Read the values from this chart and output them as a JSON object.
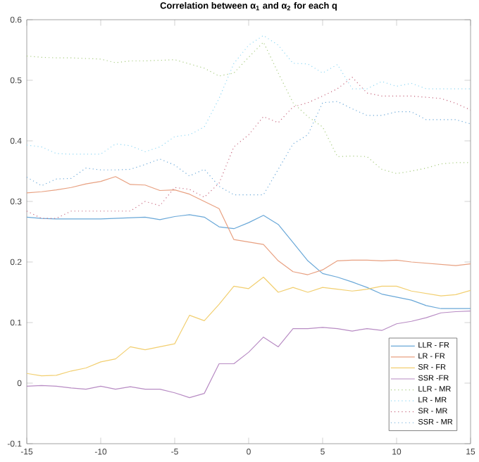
{
  "chart_data": {
    "type": "line",
    "title": "Correlation between α$_{1}$ and α$_{2}$ for each q",
    "x": [
      -15,
      -14,
      -13,
      -12,
      -11,
      -10,
      -9,
      -8,
      -7,
      -6,
      -5,
      -4,
      -3,
      -2,
      -1,
      0,
      1,
      2,
      3,
      4,
      5,
      6,
      7,
      8,
      9,
      10,
      11,
      12,
      13,
      14,
      15
    ],
    "xlim": [
      -15,
      15
    ],
    "xticks": [
      -15,
      -10,
      -5,
      0,
      5,
      10,
      15
    ],
    "ylim": [
      -0.1,
      0.6
    ],
    "yticks": [
      -0.1,
      0,
      0.1,
      0.2,
      0.3,
      0.4,
      0.5,
      0.6
    ],
    "grid": false,
    "legend": "bottom right",
    "series": [
      {
        "name": "LLR - FR",
        "color": "#6aa8d8",
        "line_style": "solid",
        "values": [
          0.274,
          0.272,
          0.271,
          0.271,
          0.271,
          0.271,
          0.272,
          0.273,
          0.274,
          0.27,
          0.275,
          0.278,
          0.274,
          0.258,
          0.255,
          0.265,
          0.277,
          0.262,
          0.232,
          0.202,
          0.181,
          0.175,
          0.167,
          0.158,
          0.147,
          0.142,
          0.137,
          0.128,
          0.123,
          0.123,
          0.123
        ]
      },
      {
        "name": "LR - FR",
        "color": "#e8a080",
        "line_style": "solid",
        "values": [
          0.314,
          0.316,
          0.319,
          0.323,
          0.329,
          0.333,
          0.341,
          0.328,
          0.327,
          0.318,
          0.319,
          0.312,
          0.3,
          0.288,
          0.237,
          0.233,
          0.229,
          0.202,
          0.184,
          0.179,
          0.187,
          0.202,
          0.203,
          0.203,
          0.202,
          0.203,
          0.2,
          0.198,
          0.196,
          0.194,
          0.197
        ]
      },
      {
        "name": "SR - FR",
        "color": "#f2cf70",
        "line_style": "solid",
        "values": [
          0.016,
          0.012,
          0.013,
          0.02,
          0.025,
          0.035,
          0.04,
          0.06,
          0.055,
          0.06,
          0.065,
          0.112,
          0.103,
          0.13,
          0.16,
          0.156,
          0.175,
          0.15,
          0.158,
          0.15,
          0.158,
          0.155,
          0.152,
          0.155,
          0.16,
          0.16,
          0.152,
          0.148,
          0.144,
          0.146,
          0.153
        ]
      },
      {
        "name": "SSR -FR",
        "color": "#b88cc4",
        "line_style": "solid",
        "values": [
          -0.005,
          -0.004,
          -0.005,
          -0.008,
          -0.01,
          -0.005,
          -0.01,
          -0.006,
          -0.01,
          -0.01,
          -0.016,
          -0.024,
          -0.017,
          0.032,
          0.032,
          0.051,
          0.076,
          0.06,
          0.09,
          0.09,
          0.092,
          0.09,
          0.086,
          0.09,
          0.087,
          0.098,
          0.102,
          0.108,
          0.116,
          0.118,
          0.119
        ]
      },
      {
        "name": "LLR - MR",
        "color": "#a8cc80",
        "line_style": "dotted",
        "values": [
          0.54,
          0.538,
          0.537,
          0.537,
          0.536,
          0.535,
          0.529,
          0.532,
          0.532,
          0.533,
          0.534,
          0.527,
          0.52,
          0.507,
          0.512,
          0.538,
          0.563,
          0.512,
          0.463,
          0.44,
          0.423,
          0.374,
          0.375,
          0.374,
          0.353,
          0.346,
          0.35,
          0.355,
          0.362,
          0.364,
          0.364
        ]
      },
      {
        "name": "LR - MR",
        "color": "#90d8f4",
        "line_style": "dotted",
        "values": [
          0.393,
          0.39,
          0.379,
          0.378,
          0.378,
          0.378,
          0.395,
          0.392,
          0.382,
          0.39,
          0.407,
          0.41,
          0.423,
          0.47,
          0.528,
          0.558,
          0.574,
          0.558,
          0.528,
          0.527,
          0.512,
          0.526,
          0.486,
          0.486,
          0.498,
          0.49,
          0.495,
          0.486,
          0.486,
          0.486,
          0.486
        ]
      },
      {
        "name": "SR - MR",
        "color": "#c86a80",
        "line_style": "dotted",
        "values": [
          0.284,
          0.272,
          0.272,
          0.284,
          0.284,
          0.284,
          0.284,
          0.284,
          0.3,
          0.293,
          0.323,
          0.32,
          0.307,
          0.33,
          0.39,
          0.41,
          0.44,
          0.43,
          0.456,
          0.463,
          0.474,
          0.486,
          0.505,
          0.479,
          0.474,
          0.474,
          0.474,
          0.472,
          0.47,
          0.462,
          0.451
        ]
      },
      {
        "name": "SSR - MR",
        "color": "#6aa8d8",
        "line_style": "dotted",
        "values": [
          0.34,
          0.326,
          0.337,
          0.338,
          0.355,
          0.352,
          0.352,
          0.353,
          0.361,
          0.37,
          0.36,
          0.342,
          0.353,
          0.325,
          0.311,
          0.311,
          0.311,
          0.353,
          0.395,
          0.41,
          0.463,
          0.465,
          0.453,
          0.442,
          0.442,
          0.448,
          0.448,
          0.435,
          0.435,
          0.435,
          0.428
        ]
      }
    ]
  }
}
